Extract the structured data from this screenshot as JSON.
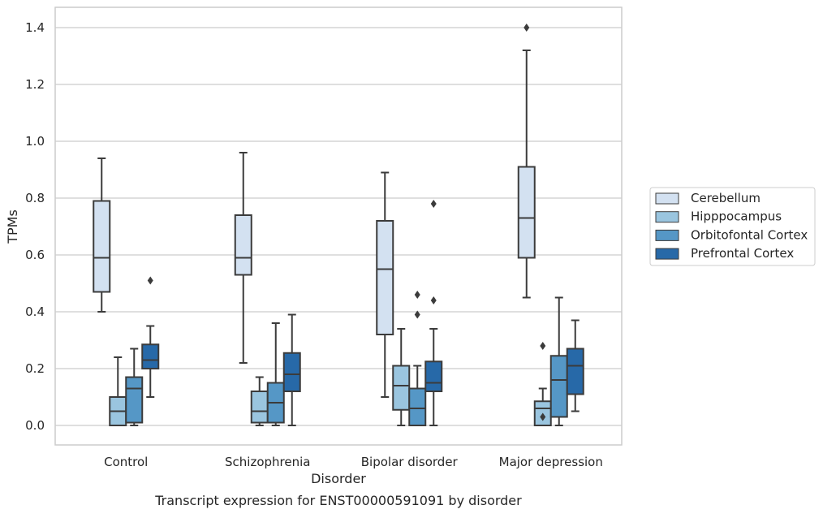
{
  "chart_data": {
    "type": "box",
    "title": "",
    "caption": "Transcript expression for ENST00000591091 by disorder",
    "xlabel": "Disorder",
    "ylabel": "TPMs",
    "ylim": [
      -0.07,
      1.47
    ],
    "yticks": [
      "0.0",
      "0.2",
      "0.4",
      "0.6",
      "0.8",
      "1.0",
      "1.2",
      "1.4"
    ],
    "ytick_values": [
      0,
      0.2,
      0.4,
      0.6,
      0.8,
      1.0,
      1.2,
      1.4
    ],
    "grid": true,
    "legend_position": "right",
    "categories": [
      "Control",
      "Schizophrenia",
      "Bipolar disorder",
      "Major depression"
    ],
    "series": [
      {
        "name": "Cerebellum",
        "color": "#d3e1f1",
        "boxes": [
          {
            "whislo": 0.4,
            "q1": 0.47,
            "med": 0.59,
            "q3": 0.79,
            "whishi": 0.94,
            "fliers": []
          },
          {
            "whislo": 0.22,
            "q1": 0.53,
            "med": 0.59,
            "q3": 0.74,
            "whishi": 0.96,
            "fliers": []
          },
          {
            "whislo": 0.1,
            "q1": 0.32,
            "med": 0.55,
            "q3": 0.72,
            "whishi": 0.89,
            "fliers": []
          },
          {
            "whislo": 0.45,
            "q1": 0.59,
            "med": 0.73,
            "q3": 0.91,
            "whishi": 1.32,
            "fliers": [
              1.4
            ]
          }
        ]
      },
      {
        "name": "Hipppocampus",
        "color": "#9ac5df",
        "boxes": [
          {
            "whislo": 0.0,
            "q1": 0.0,
            "med": 0.05,
            "q3": 0.1,
            "whishi": 0.24,
            "fliers": []
          },
          {
            "whislo": 0.0,
            "q1": 0.01,
            "med": 0.05,
            "q3": 0.12,
            "whishi": 0.17,
            "fliers": []
          },
          {
            "whislo": 0.0,
            "q1": 0.055,
            "med": 0.14,
            "q3": 0.21,
            "whishi": 0.34,
            "fliers": []
          },
          {
            "whislo": 0.0,
            "q1": 0.0,
            "med": 0.06,
            "q3": 0.085,
            "whishi": 0.13,
            "fliers": [
              0.03,
              0.28
            ]
          }
        ]
      },
      {
        "name": "Orbitofontal Cortex",
        "color": "#5597c6",
        "boxes": [
          {
            "whislo": 0.0,
            "q1": 0.01,
            "med": 0.13,
            "q3": 0.17,
            "whishi": 0.27,
            "fliers": []
          },
          {
            "whislo": 0.0,
            "q1": 0.01,
            "med": 0.08,
            "q3": 0.15,
            "whishi": 0.36,
            "fliers": []
          },
          {
            "whislo": 0.0,
            "q1": 0.0,
            "med": 0.06,
            "q3": 0.13,
            "whishi": 0.21,
            "fliers": [
              0.39,
              0.46
            ]
          },
          {
            "whislo": 0.0,
            "q1": 0.03,
            "med": 0.16,
            "q3": 0.245,
            "whishi": 0.45,
            "fliers": []
          }
        ]
      },
      {
        "name": "Prefrontal Cortex",
        "color": "#2769a8",
        "boxes": [
          {
            "whislo": 0.1,
            "q1": 0.2,
            "med": 0.23,
            "q3": 0.285,
            "whishi": 0.35,
            "fliers": [
              0.51
            ]
          },
          {
            "whislo": 0.0,
            "q1": 0.12,
            "med": 0.18,
            "q3": 0.255,
            "whishi": 0.39,
            "fliers": []
          },
          {
            "whislo": 0.0,
            "q1": 0.12,
            "med": 0.15,
            "q3": 0.225,
            "whishi": 0.34,
            "fliers": [
              0.44,
              0.78
            ]
          },
          {
            "whislo": 0.05,
            "q1": 0.11,
            "med": 0.21,
            "q3": 0.27,
            "whishi": 0.37,
            "fliers": []
          }
        ]
      }
    ]
  }
}
